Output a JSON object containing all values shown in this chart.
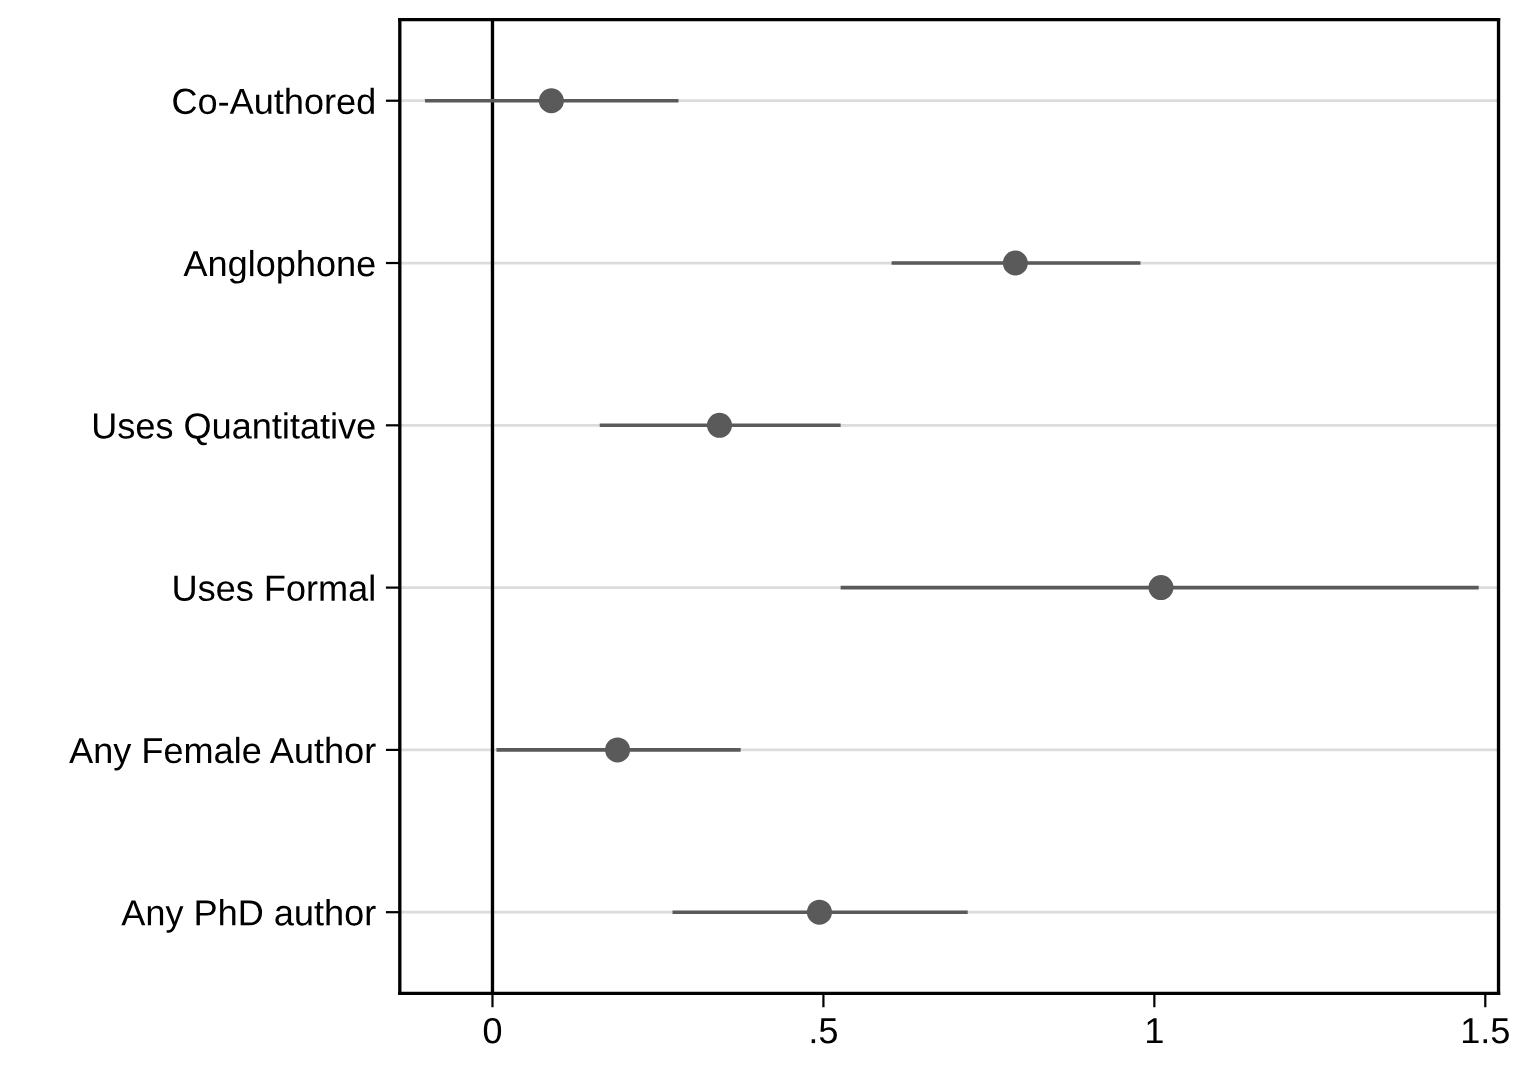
{
  "chart_data": {
    "type": "scatter",
    "orientation": "horizontal",
    "categories": [
      "Co-Authored",
      "Anglophone",
      "Uses Quantitative",
      "Uses Formal",
      "Any Female Author",
      "Any PhD author"
    ],
    "values": [
      0.089,
      0.79,
      0.343,
      1.01,
      0.189,
      0.494
    ],
    "errors": [
      [
        -0.102,
        0.281
      ],
      [
        0.603,
        0.979
      ],
      [
        0.162,
        0.526
      ],
      [
        0.526,
        1.49
      ],
      [
        0.006,
        0.375
      ],
      [
        0.272,
        0.718
      ]
    ],
    "color": "#5a5a5a",
    "marker": "circle",
    "xlim": [
      -0.14,
      1.52
    ],
    "xticks": [
      0,
      {
        "value": 0.5,
        "label": ".5"
      },
      1,
      1.5
    ],
    "grid": "y",
    "legend": false,
    "ref_lines": [
      {
        "axis": "x",
        "value": 0,
        "color": "#000000"
      }
    ]
  }
}
